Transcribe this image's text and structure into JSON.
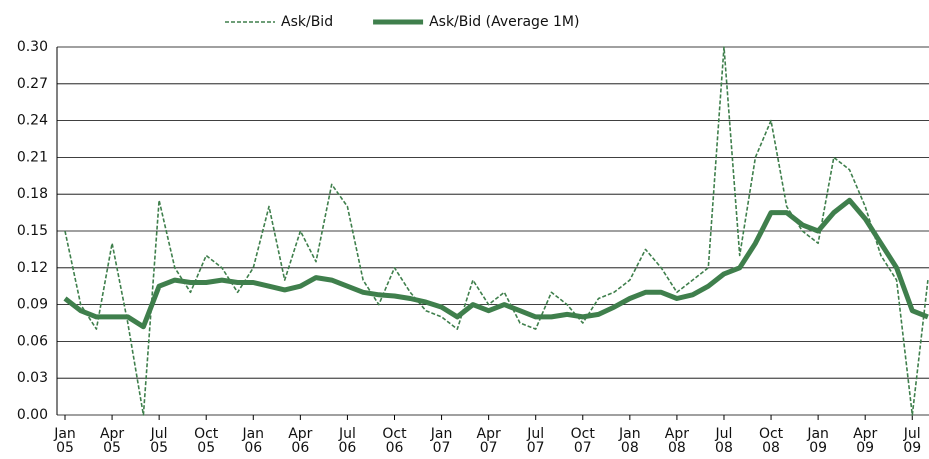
{
  "chart_data": {
    "type": "line",
    "x": [
      "2005-01",
      "2005-02",
      "2005-03",
      "2005-04",
      "2005-05",
      "2005-06",
      "2005-07",
      "2005-08",
      "2005-09",
      "2005-10",
      "2005-11",
      "2005-12",
      "2006-01",
      "2006-02",
      "2006-03",
      "2006-04",
      "2006-05",
      "2006-06",
      "2006-07",
      "2006-08",
      "2006-09",
      "2006-10",
      "2006-11",
      "2006-12",
      "2007-01",
      "2007-02",
      "2007-03",
      "2007-04",
      "2007-05",
      "2007-06",
      "2007-07",
      "2007-08",
      "2007-09",
      "2007-10",
      "2007-11",
      "2007-12",
      "2008-01",
      "2008-02",
      "2008-03",
      "2008-04",
      "2008-05",
      "2008-06",
      "2008-07",
      "2008-08",
      "2008-09",
      "2008-10",
      "2008-11",
      "2008-12",
      "2009-01",
      "2009-02",
      "2009-03",
      "2009-04",
      "2009-05",
      "2009-06",
      "2009-07",
      "2009-08"
    ],
    "series": [
      {
        "name": "Ask/Bid",
        "color": "#3f7f4c",
        "dash": true,
        "values": [
          0.15,
          0.09,
          0.07,
          0.14,
          0.075,
          0.0,
          0.175,
          0.12,
          0.1,
          0.13,
          0.12,
          0.1,
          0.12,
          0.17,
          0.11,
          0.15,
          0.125,
          0.188,
          0.17,
          0.11,
          0.09,
          0.12,
          0.1,
          0.085,
          0.08,
          0.07,
          0.11,
          0.09,
          0.1,
          0.075,
          0.07,
          0.1,
          0.09,
          0.075,
          0.095,
          0.1,
          0.11,
          0.135,
          0.12,
          0.1,
          0.11,
          0.12,
          0.3,
          0.13,
          0.21,
          0.24,
          0.17,
          0.15,
          0.14,
          0.21,
          0.2,
          0.17,
          0.13,
          0.11,
          0.0,
          0.11
        ]
      },
      {
        "name": "Ask/Bid (Average 1M)",
        "color": "#3f7f4c",
        "dash": false,
        "values": [
          0.095,
          0.085,
          0.08,
          0.08,
          0.08,
          0.072,
          0.105,
          0.11,
          0.108,
          0.108,
          0.11,
          0.108,
          0.108,
          0.105,
          0.102,
          0.105,
          0.112,
          0.11,
          0.105,
          0.1,
          0.098,
          0.097,
          0.095,
          0.092,
          0.088,
          0.08,
          0.09,
          0.085,
          0.09,
          0.085,
          0.08,
          0.08,
          0.082,
          0.08,
          0.082,
          0.088,
          0.095,
          0.1,
          0.1,
          0.095,
          0.098,
          0.105,
          0.115,
          0.12,
          0.14,
          0.165,
          0.165,
          0.155,
          0.15,
          0.165,
          0.175,
          0.16,
          0.14,
          0.12,
          0.085,
          0.08
        ]
      }
    ],
    "ylim": [
      0,
      0.3
    ],
    "yticks": [
      {
        "value": 0,
        "label": "0.00"
      },
      {
        "value": 0.03,
        "label": "0.03"
      },
      {
        "value": 0.06,
        "label": "0.06"
      },
      {
        "value": 0.09,
        "label": "0.09"
      },
      {
        "value": 0.12,
        "label": "0.12"
      },
      {
        "value": 0.15,
        "label": "0.15"
      },
      {
        "value": 0.18,
        "label": "0.18"
      },
      {
        "value": 0.21,
        "label": "0.21"
      },
      {
        "value": 0.24,
        "label": "0.24"
      },
      {
        "value": 0.27,
        "label": "0.27"
      },
      {
        "value": 0.3,
        "label": "0.30"
      }
    ],
    "xticks": [
      {
        "value": "2005-01",
        "label": "Jan 05"
      },
      {
        "value": "2005-04",
        "label": "Apr 05"
      },
      {
        "value": "2005-07",
        "label": "Jul 05"
      },
      {
        "value": "2005-10",
        "label": "Oct 05"
      },
      {
        "value": "2006-01",
        "label": "Jan 06"
      },
      {
        "value": "2006-04",
        "label": "Apr 06"
      },
      {
        "value": "2006-07",
        "label": "Jul 06"
      },
      {
        "value": "2006-10",
        "label": "Oct 06"
      },
      {
        "value": "2007-01",
        "label": "Jan 07"
      },
      {
        "value": "2007-04",
        "label": "Apr 07"
      },
      {
        "value": "2007-07",
        "label": "Jul 07"
      },
      {
        "value": "2007-10",
        "label": "Oct 07"
      },
      {
        "value": "2008-01",
        "label": "Jan 08"
      },
      {
        "value": "2008-04",
        "label": "Apr 08"
      },
      {
        "value": "2008-07",
        "label": "Jul 08"
      },
      {
        "value": "2008-10",
        "label": "Oct 08"
      },
      {
        "value": "2009-01",
        "label": "Jan 09"
      },
      {
        "value": "2009-04",
        "label": "Apr 09"
      },
      {
        "value": "2009-07",
        "label": "Jul 09"
      }
    ],
    "grid": true,
    "legend": "top"
  }
}
